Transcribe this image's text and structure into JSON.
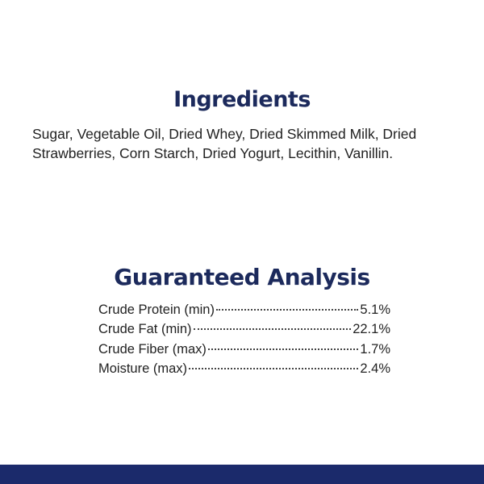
{
  "ingredients": {
    "title": "Ingredients",
    "lines": [
      "Sugar, Vegetable Oil, Dried Whey, Dried Skimmed Milk, Dried",
      "Strawberries, Corn Starch, Dried Yogurt, Lecithin, Vanillin."
    ]
  },
  "analysis": {
    "title": "Guaranteed Analysis",
    "rows": [
      [
        "Crude Protein (min)",
        "5.1%"
      ],
      [
        "Crude Fat (min)",
        "22.1%"
      ],
      [
        "Crude Fiber (max)",
        "1.7%"
      ],
      [
        "Moisture (max)",
        "2.4%"
      ]
    ]
  }
}
